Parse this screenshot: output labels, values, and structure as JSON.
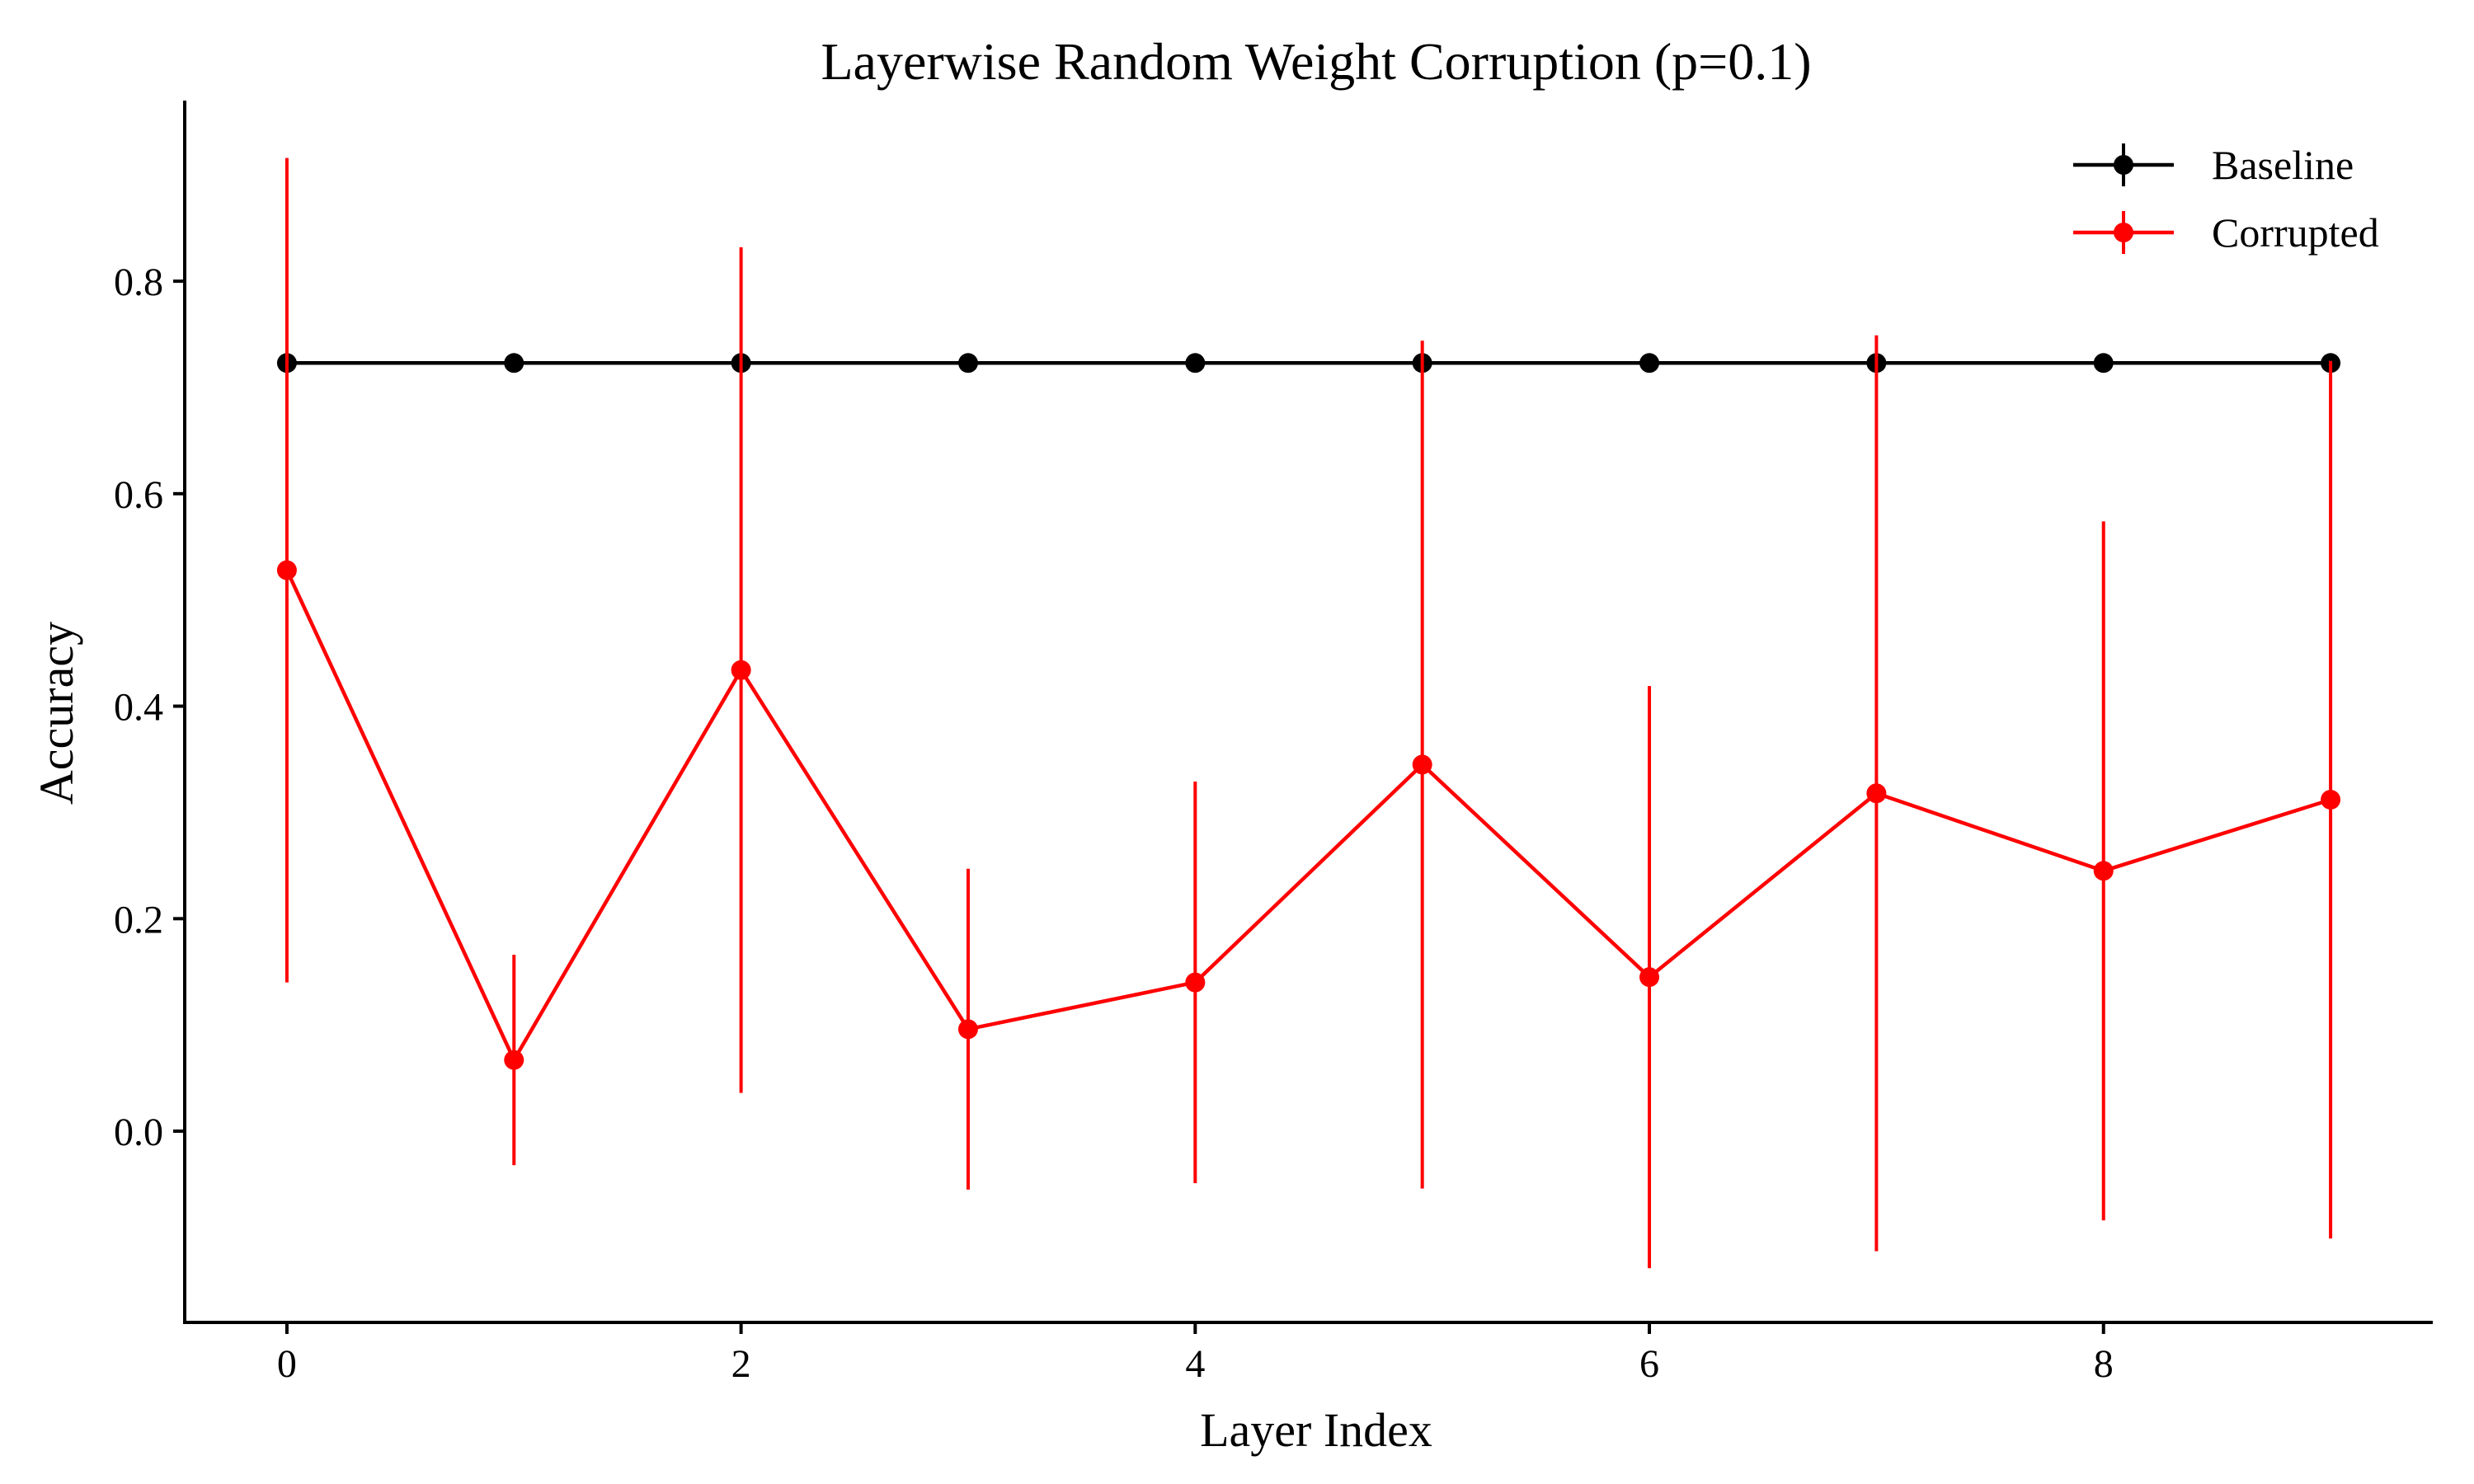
{
  "chart_data": {
    "type": "line",
    "title": "Layerwise Random Weight Corruption (p=0.1)",
    "xlabel": "Layer Index",
    "ylabel": "Accuracy",
    "x": [
      0,
      1,
      2,
      3,
      4,
      5,
      6,
      7,
      8,
      9
    ],
    "xlim": [
      -0.45,
      9.45
    ],
    "ylim": [
      -0.18,
      0.97
    ],
    "xticks": [
      0,
      2,
      4,
      6,
      8
    ],
    "yticks": [
      0.0,
      0.2,
      0.4,
      0.6,
      0.8
    ],
    "xtick_labels": [
      "0",
      "2",
      "4",
      "6",
      "8"
    ],
    "ytick_labels": [
      "0.0",
      "0.2",
      "0.4",
      "0.6",
      "0.8"
    ],
    "grid": false,
    "legend_position": "top-right",
    "series": [
      {
        "name": "Baseline",
        "color": "#000000",
        "values": [
          0.723,
          0.723,
          0.723,
          0.723,
          0.723,
          0.723,
          0.723,
          0.723,
          0.723,
          0.723
        ],
        "error": [
          0,
          0,
          0,
          0,
          0,
          0,
          0,
          0,
          0,
          0
        ]
      },
      {
        "name": "Corrupted",
        "color": "#ff0000",
        "values": [
          0.528,
          0.067,
          0.434,
          0.096,
          0.14,
          0.345,
          0.145,
          0.318,
          0.245,
          0.312
        ],
        "error": [
          0.388,
          0.099,
          0.398,
          0.151,
          0.189,
          0.399,
          0.274,
          0.431,
          0.329,
          0.413
        ]
      }
    ]
  }
}
